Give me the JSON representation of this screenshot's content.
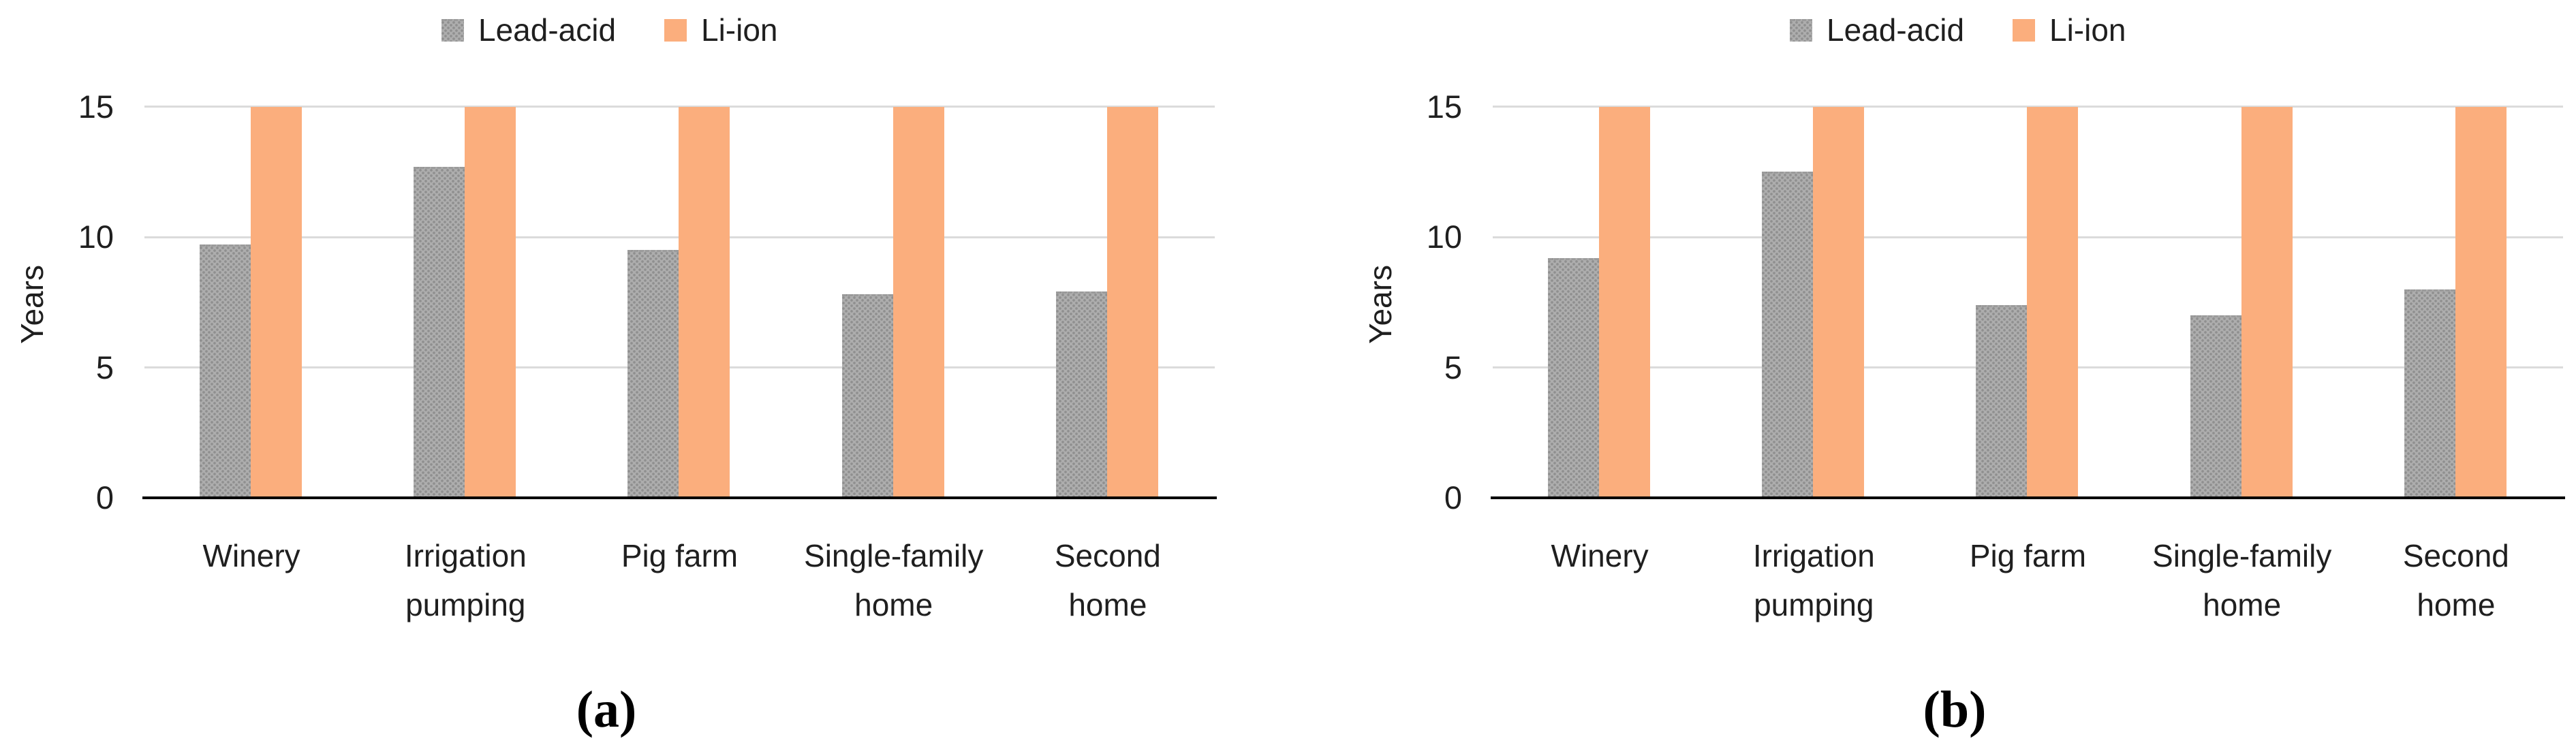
{
  "figure": {
    "background": "#ffffff",
    "colors": {
      "li_ion": "#FBAE7D",
      "lead_acid_base": "#ADADAD",
      "lead_acid_dot": "#8F8F8F",
      "gridline": "#DBDBDB",
      "axis": "#000000",
      "text": "#1F1F1F"
    },
    "legend": {
      "items": [
        {
          "label": "Lead-acid",
          "swatch": "gray-dot-pattern"
        },
        {
          "label": "Li-ion",
          "swatch": "solid-orange"
        }
      ]
    }
  },
  "chart_data": [
    {
      "panel": "a",
      "caption": "(a)",
      "type": "bar",
      "ylabel": "Years",
      "ylim": [
        0,
        15
      ],
      "yticks": [
        0,
        5,
        10,
        15
      ],
      "grid": true,
      "legend_position": "top-center",
      "categories": [
        "Winery",
        "Irrigation pumping",
        "Pig farm",
        "Single-family home",
        "Second home"
      ],
      "category_label_lines": [
        [
          "Winery"
        ],
        [
          "Irrigation",
          "pumping"
        ],
        [
          "Pig farm"
        ],
        [
          "Single-family",
          "home"
        ],
        [
          "Second",
          "home"
        ]
      ],
      "series": [
        {
          "name": "Lead-acid",
          "style": "gray-dot-pattern",
          "values": [
            9.7,
            12.7,
            9.5,
            7.8,
            7.9
          ]
        },
        {
          "name": "Li-ion",
          "style": "solid-orange",
          "values": [
            15,
            15,
            15,
            15,
            15
          ]
        }
      ]
    },
    {
      "panel": "b",
      "caption": "(b)",
      "type": "bar",
      "ylabel": "Years",
      "ylim": [
        0,
        15
      ],
      "yticks": [
        0,
        5,
        10,
        15
      ],
      "grid": true,
      "legend_position": "top-center",
      "categories": [
        "Winery",
        "Irrigation pumping",
        "Pig farm",
        "Single-family home",
        "Second home"
      ],
      "category_label_lines": [
        [
          "Winery"
        ],
        [
          "Irrigation",
          "pumping"
        ],
        [
          "Pig farm"
        ],
        [
          "Single-family",
          "home"
        ],
        [
          "Second",
          "home"
        ]
      ],
      "series": [
        {
          "name": "Lead-acid",
          "style": "gray-dot-pattern",
          "values": [
            9.2,
            12.5,
            7.4,
            7.0,
            8.0
          ]
        },
        {
          "name": "Li-ion",
          "style": "solid-orange",
          "values": [
            15,
            15,
            15,
            15,
            15
          ]
        }
      ]
    }
  ]
}
